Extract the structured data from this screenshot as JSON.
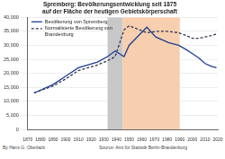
{
  "chart_data": {
    "type": "line",
    "title": "Spremberg: Bevölkerungsentwicklung seit 1875 auf der Fläche der heutigen Gebietskörperschaft",
    "x": [
      1875,
      1890,
      1900,
      1910,
      1925,
      1933,
      1939,
      1946,
      1950,
      1964,
      1971,
      1981,
      1989,
      1995,
      2000,
      2005,
      2010,
      2015,
      2019
    ],
    "series": [
      {
        "name": "Bevölkerung von Spremberg",
        "color": "#1c3f94",
        "line_style": "solid",
        "values": [
          13000,
          16000,
          19000,
          22000,
          24000,
          26000,
          28000,
          26000,
          30000,
          36500,
          33000,
          31000,
          30000,
          28500,
          27000,
          25500,
          23500,
          22500,
          22000
        ]
      },
      {
        "name": "Normalisierte Bevölkerung von Brandenburg",
        "color": "#333355",
        "line_style": "dashed",
        "values": [
          13000,
          15500,
          18000,
          21000,
          23000,
          24500,
          26000,
          35500,
          37000,
          34500,
          35000,
          35000,
          34500,
          33500,
          32500,
          32500,
          33000,
          33500,
          34000
        ]
      }
    ],
    "xlim": [
      1870,
      2020
    ],
    "xticks": [
      1870,
      1880,
      1890,
      1900,
      1910,
      1920,
      1930,
      1940,
      1950,
      1960,
      1970,
      1980,
      1990,
      2000,
      2010,
      2020
    ],
    "ylim": [
      0,
      40000
    ],
    "yticks": [
      0,
      {
        "value": 5000,
        "label": "5,000"
      },
      {
        "value": 10000,
        "label": "10,000"
      },
      {
        "value": 15000,
        "label": "15,000"
      },
      {
        "value": 20000,
        "label": "20,000"
      },
      {
        "value": 25000,
        "label": "25,000"
      },
      {
        "value": 30000,
        "label": "30,000"
      },
      {
        "value": 35000,
        "label": "35,000"
      },
      {
        "value": 40000,
        "label": "40,000"
      }
    ],
    "grid": true,
    "legend": "upper left",
    "shaded_periods": [
      {
        "from": 1933,
        "to": 1945,
        "color": "#c8c8c8"
      },
      {
        "from": 1945,
        "to": 1990,
        "color": "#f7cfae"
      }
    ],
    "footer": {
      "author": "By Hans G. Oberlack",
      "source": "Source: Amt für Statistik Berlin-Brandenburg"
    }
  }
}
